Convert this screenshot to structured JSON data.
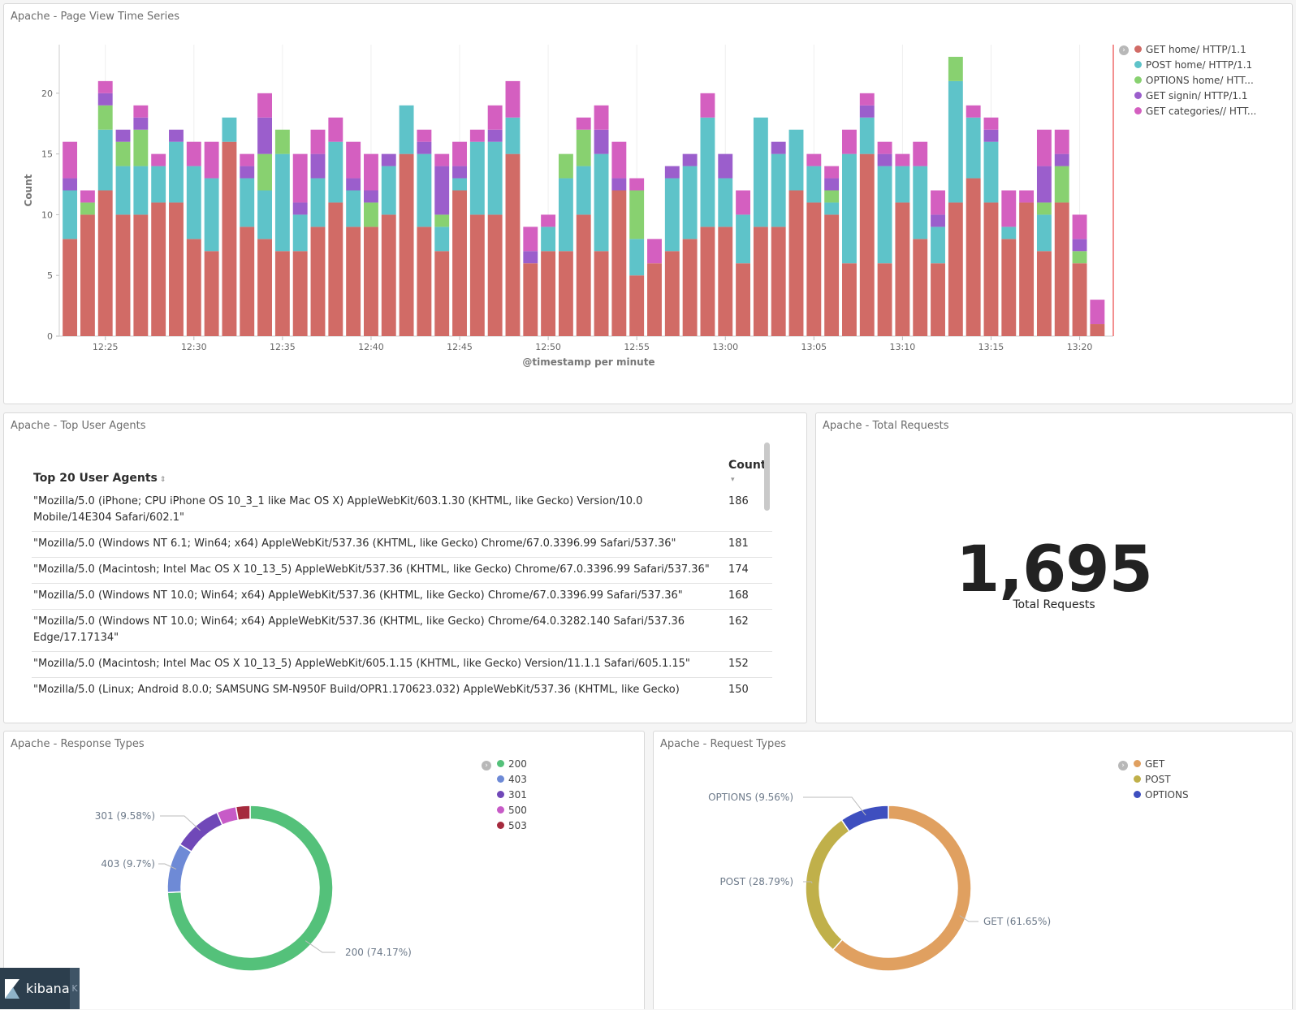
{
  "time_series": {
    "title": "Apache - Page View Time Series",
    "chart_data": {
      "type": "bar",
      "stacked": true,
      "xlabel": "@timestamp per minute",
      "ylabel": "Count",
      "ylim": [
        0,
        24
      ],
      "y_ticks": [
        0,
        5,
        10,
        15,
        20
      ],
      "x_tick_labels": [
        "12:25",
        "12:30",
        "12:35",
        "12:40",
        "12:45",
        "12:50",
        "12:55",
        "13:00",
        "13:05",
        "13:10",
        "13:15",
        "13:20"
      ],
      "x_start": "12:23",
      "x_end": "13:22",
      "grid": true,
      "legend_position": "right",
      "series": [
        {
          "name": "GET home/ HTTP/1.1",
          "color": "#d16b66",
          "values": [
            8,
            10,
            12,
            10,
            10,
            11,
            11,
            8,
            7,
            16,
            9,
            8,
            7,
            7,
            9,
            11,
            9,
            9,
            10,
            15,
            9,
            7,
            12,
            10,
            10,
            15,
            6,
            7,
            7,
            10,
            7,
            12,
            5,
            6,
            7,
            8,
            9,
            9,
            6,
            9,
            9,
            12,
            11,
            10,
            6,
            15,
            6,
            11,
            8,
            6,
            11,
            13,
            11,
            8,
            11,
            7,
            11,
            6,
            1
          ]
        },
        {
          "name": "POST home/ HTTP/1.1",
          "color": "#5ec3c9",
          "values": [
            4,
            0,
            5,
            4,
            4,
            3,
            5,
            6,
            6,
            2,
            4,
            4,
            8,
            3,
            4,
            5,
            3,
            0,
            4,
            4,
            6,
            2,
            1,
            6,
            6,
            3,
            0,
            2,
            6,
            4,
            8,
            0,
            3,
            0,
            6,
            6,
            9,
            4,
            4,
            9,
            6,
            5,
            3,
            1,
            9,
            3,
            8,
            3,
            6,
            3,
            10,
            5,
            5,
            1,
            0,
            3,
            0,
            0,
            0
          ]
        },
        {
          "name": "OPTIONS home/ HTTP/1.1",
          "color": "#88d170",
          "values": [
            0,
            1,
            2,
            2,
            3,
            0,
            0,
            0,
            0,
            0,
            0,
            3,
            2,
            0,
            0,
            0,
            0,
            2,
            0,
            0,
            0,
            1,
            0,
            0,
            0,
            0,
            0,
            0,
            2,
            3,
            0,
            0,
            4,
            0,
            0,
            0,
            0,
            0,
            0,
            0,
            0,
            0,
            0,
            1,
            0,
            0,
            0,
            0,
            0,
            0,
            2,
            0,
            0,
            0,
            0,
            1,
            3,
            1,
            0
          ]
        },
        {
          "name": "GET signin/ HTTP/1.1",
          "color": "#9b5ecc",
          "values": [
            1,
            0,
            1,
            1,
            1,
            0,
            1,
            0,
            0,
            0,
            1,
            3,
            0,
            1,
            2,
            0,
            1,
            1,
            1,
            0,
            1,
            4,
            1,
            0,
            1,
            0,
            1,
            0,
            0,
            0,
            2,
            1,
            0,
            0,
            1,
            1,
            0,
            2,
            0,
            0,
            1,
            0,
            0,
            1,
            0,
            1,
            1,
            0,
            0,
            1,
            0,
            0,
            1,
            0,
            0,
            3,
            1,
            1,
            0
          ]
        },
        {
          "name": "GET categories// HTTP/1.1",
          "color": "#d45fc0",
          "values": [
            3,
            1,
            1,
            0,
            1,
            1,
            0,
            2,
            3,
            0,
            1,
            2,
            0,
            4,
            2,
            2,
            3,
            3,
            0,
            0,
            1,
            1,
            2,
            1,
            2,
            3,
            2,
            1,
            0,
            1,
            2,
            3,
            1,
            2,
            0,
            0,
            2,
            0,
            2,
            0,
            0,
            0,
            1,
            1,
            2,
            1,
            1,
            1,
            2,
            2,
            0,
            1,
            1,
            3,
            1,
            3,
            2,
            2,
            2
          ]
        }
      ]
    },
    "legend_labels": [
      "GET home/ HTTP/1.1",
      "POST home/ HTTP/1.1",
      "OPTIONS home/ HTT...",
      "GET signin/ HTTP/1.1",
      "GET categories// HTT..."
    ]
  },
  "user_agents": {
    "title": "Apache - Top User Agents",
    "col_agent": "Top 20 User Agents",
    "col_count": "Count",
    "rows": [
      {
        "agent": "\"Mozilla/5.0 (iPhone; CPU iPhone OS 10_3_1 like Mac OS X) AppleWebKit/603.1.30 (KHTML, like Gecko) Version/10.0 Mobile/14E304 Safari/602.1\"",
        "count": "186"
      },
      {
        "agent": "\"Mozilla/5.0 (Windows NT 6.1; Win64; x64) AppleWebKit/537.36 (KHTML, like Gecko) Chrome/67.0.3396.99 Safari/537.36\"",
        "count": "181"
      },
      {
        "agent": "\"Mozilla/5.0 (Macintosh; Intel Mac OS X 10_13_5) AppleWebKit/537.36 (KHTML, like Gecko) Chrome/67.0.3396.99 Safari/537.36\"",
        "count": "174"
      },
      {
        "agent": "\"Mozilla/5.0 (Windows NT 10.0; Win64; x64) AppleWebKit/537.36 (KHTML, like Gecko) Chrome/67.0.3396.99 Safari/537.36\"",
        "count": "168"
      },
      {
        "agent": "\"Mozilla/5.0 (Windows NT 10.0; Win64; x64) AppleWebKit/537.36 (KHTML, like Gecko) Chrome/64.0.3282.140 Safari/537.36 Edge/17.17134\"",
        "count": "162"
      },
      {
        "agent": "\"Mozilla/5.0 (Macintosh; Intel Mac OS X 10_13_5) AppleWebKit/605.1.15 (KHTML, like Gecko) Version/11.1.1 Safari/605.1.15\"",
        "count": "152"
      },
      {
        "agent": "\"Mozilla/5.0 (Linux; Android 8.0.0; SAMSUNG SM-N950F Build/OPR1.170623.032) AppleWebKit/537.36 (KHTML, like Gecko)",
        "count": "150"
      }
    ]
  },
  "total_requests": {
    "title": "Apache - Total Requests",
    "value": "1,695",
    "label": "Total Requests"
  },
  "response_types": {
    "title": "Apache - Response Types",
    "legend": [
      "200",
      "403",
      "301",
      "500",
      "503"
    ],
    "chart_data": {
      "type": "pie",
      "donut": true,
      "slices": [
        {
          "label": "200",
          "percent": 74.17,
          "color": "#54c17a",
          "callout": "200 (74.17%)"
        },
        {
          "label": "403",
          "percent": 9.7,
          "color": "#6e8ad6",
          "callout": "403 (9.7%)"
        },
        {
          "label": "301",
          "percent": 9.58,
          "color": "#7048b8",
          "callout": "301 (9.58%)"
        },
        {
          "label": "500",
          "percent": 3.8,
          "color": "#c75bc7",
          "callout": ""
        },
        {
          "label": "503",
          "percent": 2.75,
          "color": "#a52a3d",
          "callout": ""
        }
      ]
    }
  },
  "request_types": {
    "title": "Apache - Request Types",
    "legend": [
      "GET",
      "POST",
      "OPTIONS"
    ],
    "chart_data": {
      "type": "pie",
      "donut": true,
      "slices": [
        {
          "label": "GET",
          "percent": 61.65,
          "color": "#e0a060",
          "callout": "GET (61.65%)"
        },
        {
          "label": "POST",
          "percent": 28.79,
          "color": "#c0b04a",
          "callout": "POST (28.79%)"
        },
        {
          "label": "OPTIONS",
          "percent": 9.56,
          "color": "#3e4fbf",
          "callout": "OPTIONS (9.56%)"
        }
      ]
    }
  },
  "app": {
    "name": "kibana",
    "collapse_glyph": "K"
  }
}
